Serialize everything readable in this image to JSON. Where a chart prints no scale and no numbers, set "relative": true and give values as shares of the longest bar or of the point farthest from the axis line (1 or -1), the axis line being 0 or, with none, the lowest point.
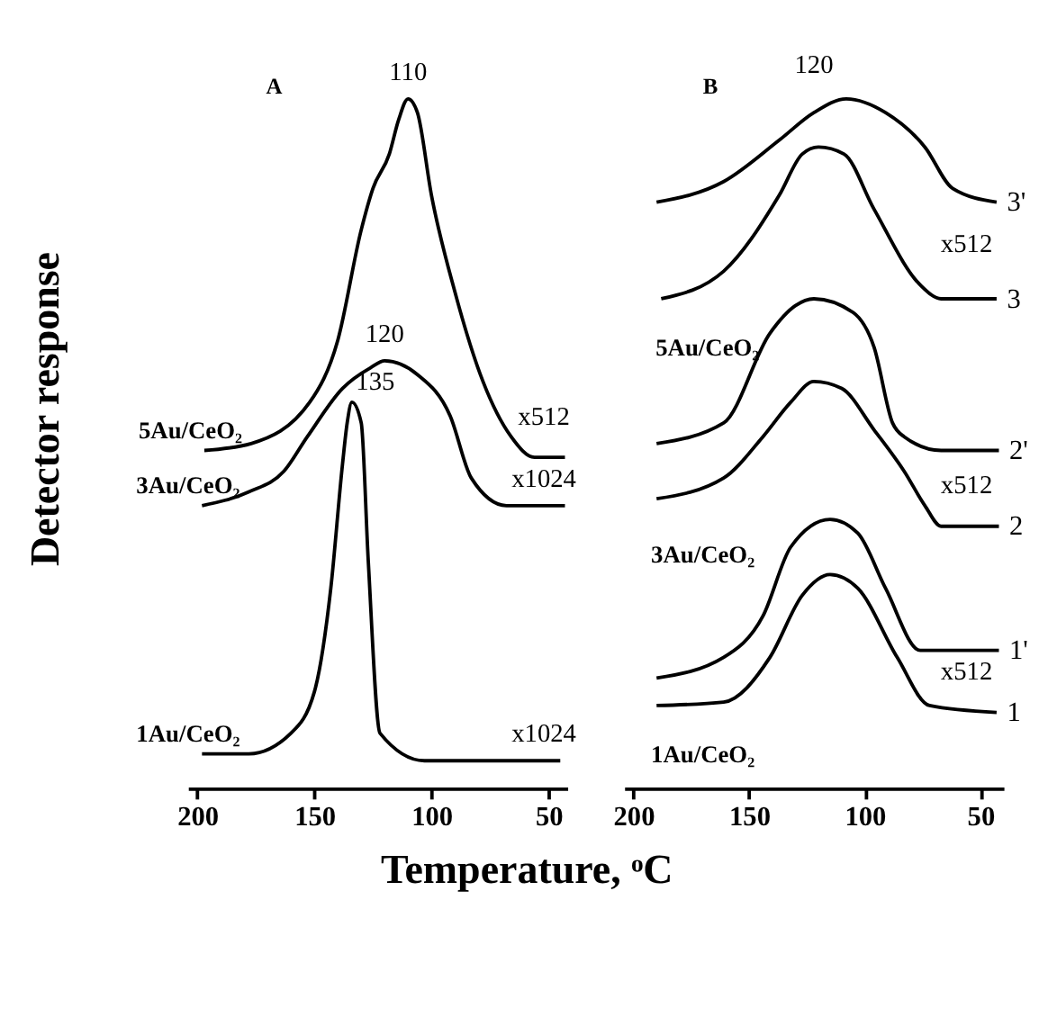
{
  "chart_data": [
    {
      "type": "line",
      "title": "A",
      "ylabel": "Detector response",
      "xlabel": "Temperature, ᵒC",
      "relative": true,
      "xlim": [
        204,
        42
      ],
      "xticks": [
        200,
        150,
        100,
        50
      ],
      "tick_labels": "x",
      "grid": false,
      "legend": false,
      "marker": "none",
      "line_style": "solid",
      "series": [
        {
          "name": "5Au/CeO₂",
          "color": "#000000",
          "x": [
            197,
            177,
            152,
            140,
            130,
            125,
            118,
            114,
            110,
            106,
            100,
            90,
            78,
            66,
            56,
            43
          ],
          "values": [
            0.49,
            0.5,
            0.56,
            0.65,
            0.81,
            0.87,
            0.92,
            0.97,
            1.0,
            0.98,
            0.86,
            0.72,
            0.59,
            0.51,
            0.48,
            0.48
          ]
        },
        {
          "name": "3Au/CeO₂",
          "color": "#000000",
          "x": [
            198,
            178,
            163,
            153,
            138,
            126,
            120,
            106,
            92,
            83,
            68,
            43
          ],
          "values": [
            0.41,
            0.43,
            0.46,
            0.51,
            0.58,
            0.61,
            0.62,
            0.6,
            0.54,
            0.45,
            0.41,
            0.41
          ]
        },
        {
          "name": "1Au/CeO₂",
          "color": "#000000",
          "x": [
            198,
            178,
            160,
            150,
            143,
            138,
            136,
            134,
            130,
            127,
            122,
            103,
            78,
            45
          ],
          "values": [
            0.05,
            0.05,
            0.08,
            0.14,
            0.29,
            0.47,
            0.53,
            0.56,
            0.53,
            0.33,
            0.08,
            0.04,
            0.04,
            0.04
          ]
        }
      ],
      "annotations": [
        "110",
        "120",
        "135",
        "x512",
        "x1024",
        "x1024"
      ]
    },
    {
      "type": "line",
      "title": "B",
      "relative": true,
      "xlim": [
        204,
        40
      ],
      "xticks": [
        200,
        150,
        100,
        50
      ],
      "tick_labels": "x",
      "grid": false,
      "legend": false,
      "marker": "none",
      "line_style": "solid",
      "series": [
        {
          "name": "3'",
          "color": "#000000",
          "x": [
            190,
            161,
            137,
            122,
            108,
            91,
            74,
            62,
            43
          ],
          "values": [
            0.85,
            0.88,
            0.94,
            0.98,
            1.0,
            0.98,
            0.93,
            0.87,
            0.85
          ]
        },
        {
          "name": "3",
          "color": "#000000",
          "x": [
            188,
            161,
            137,
            127,
            120,
            109,
            96,
            76,
            67,
            43
          ],
          "values": [
            0.71,
            0.75,
            0.86,
            0.92,
            0.93,
            0.92,
            0.84,
            0.73,
            0.71,
            0.71
          ]
        },
        {
          "name": "2'",
          "color": "#000000",
          "x": [
            190,
            161,
            141,
            130,
            122,
            105,
            96,
            88,
            83,
            67,
            42
          ],
          "values": [
            0.5,
            0.53,
            0.66,
            0.7,
            0.71,
            0.69,
            0.64,
            0.53,
            0.51,
            0.49,
            0.49
          ]
        },
        {
          "name": "2",
          "color": "#000000",
          "x": [
            190,
            161,
            144,
            132,
            122,
            110,
            96,
            83,
            74,
            67,
            42
          ],
          "values": [
            0.42,
            0.45,
            0.51,
            0.56,
            0.59,
            0.58,
            0.52,
            0.46,
            0.41,
            0.38,
            0.38
          ]
        },
        {
          "name": "1'",
          "color": "#000000",
          "x": [
            190,
            161,
            144,
            132,
            115,
            103,
            91,
            76,
            42
          ],
          "values": [
            0.16,
            0.19,
            0.25,
            0.35,
            0.39,
            0.37,
            0.29,
            0.2,
            0.2
          ]
        },
        {
          "name": "1",
          "color": "#000000",
          "x": [
            190,
            161,
            141,
            127,
            115,
            103,
            86,
            72,
            43
          ],
          "values": [
            0.12,
            0.125,
            0.19,
            0.28,
            0.31,
            0.29,
            0.19,
            0.12,
            0.11
          ]
        }
      ],
      "annotations": [
        "120",
        "5Au/CeO₂",
        "3Au/CeO₂",
        "1Au/CeO₂",
        "x512",
        "x512",
        "x512"
      ]
    }
  ]
}
